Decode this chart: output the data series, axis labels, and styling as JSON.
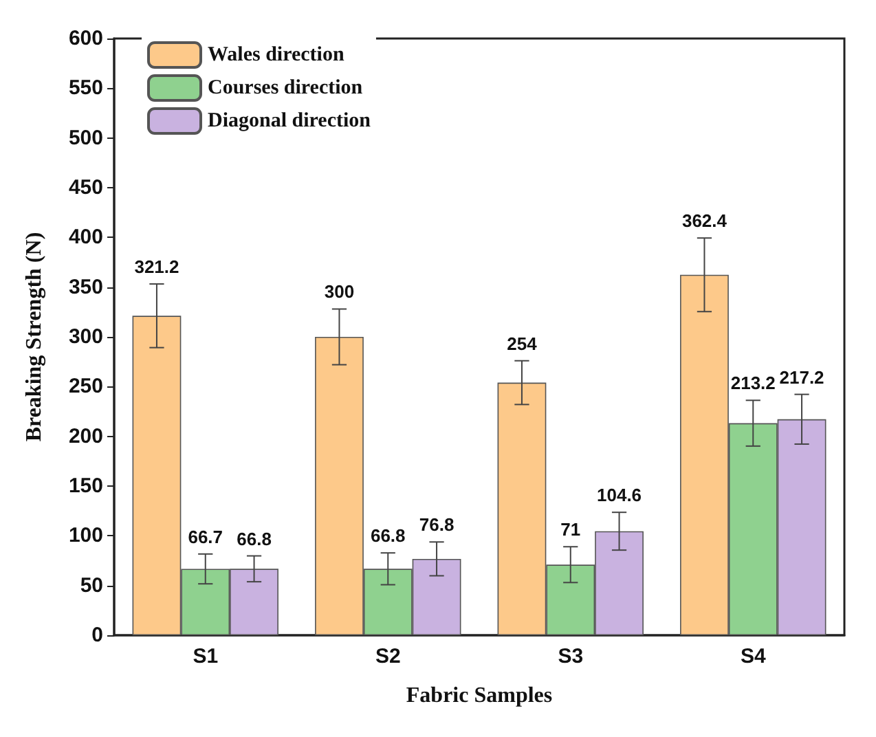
{
  "chart_data": {
    "type": "bar",
    "xlabel": "Fabric Samples",
    "ylabel": "Breaking Strength (N)",
    "categories": [
      "S1",
      "S2",
      "S3",
      "S4"
    ],
    "series": [
      {
        "name": "Wales direction",
        "color": "#fdc98a",
        "values": [
          321.2,
          300,
          254,
          362.4
        ],
        "errors": [
          32,
          28,
          22,
          37
        ]
      },
      {
        "name": "Courses direction",
        "color": "#8fd18f",
        "values": [
          66.7,
          66.8,
          71,
          213.2
        ],
        "errors": [
          15,
          16,
          18,
          23
        ]
      },
      {
        "name": "Diagonal direction",
        "color": "#c9b2e0",
        "values": [
          66.8,
          76.8,
          104.6,
          217.2
        ],
        "errors": [
          13,
          17,
          19,
          25
        ]
      }
    ],
    "ylim": [
      0,
      600
    ],
    "yticks": [
      0,
      50,
      100,
      150,
      200,
      250,
      300,
      350,
      400,
      450,
      500,
      550,
      600
    ],
    "data_labels": true,
    "legend": "top left",
    "grid": false
  }
}
